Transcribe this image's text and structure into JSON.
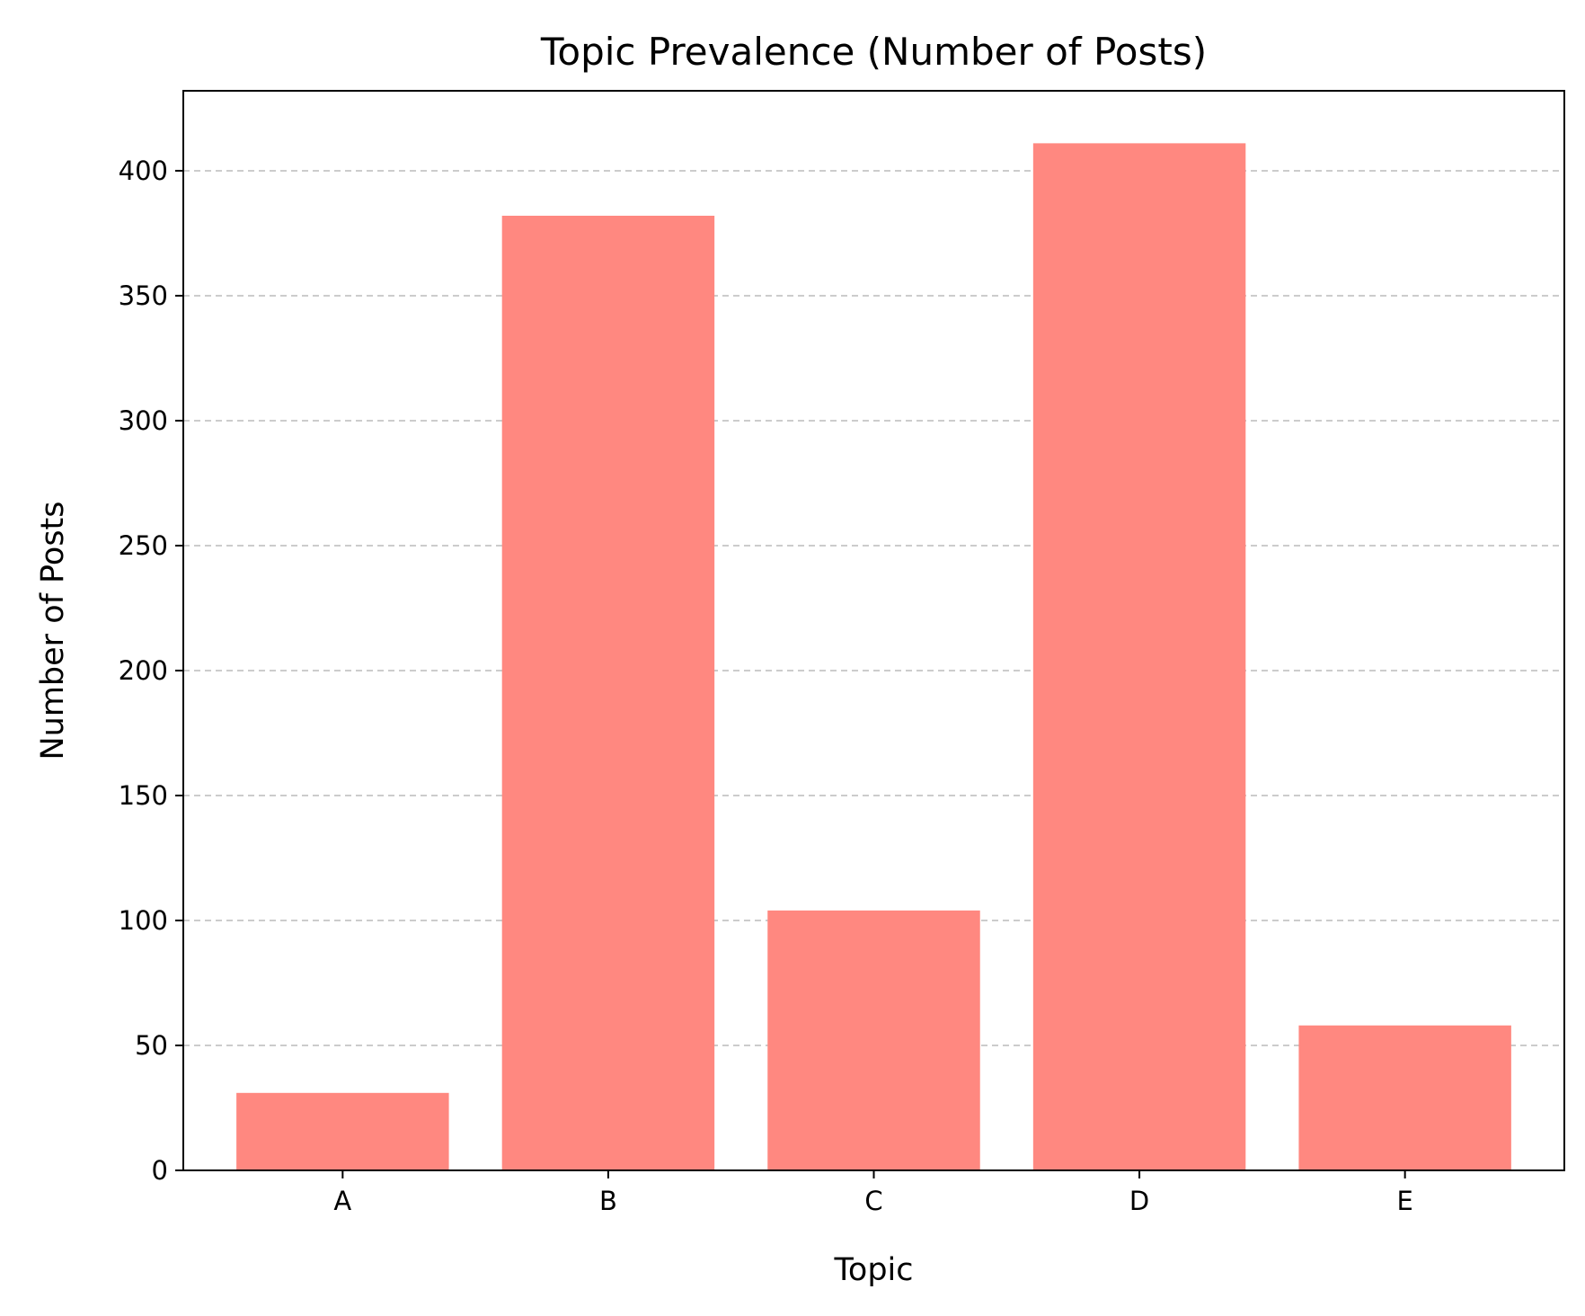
{
  "chart_data": {
    "type": "bar",
    "title": "Topic Prevalence (Number of Posts)",
    "xlabel": "Topic",
    "ylabel": "Number of Posts",
    "categories": [
      "A",
      "B",
      "C",
      "D",
      "E"
    ],
    "values": [
      31,
      382,
      104,
      411,
      58
    ],
    "ylim": [
      0,
      432
    ],
    "yticks": [
      0,
      50,
      100,
      150,
      200,
      250,
      300,
      350,
      400
    ],
    "grid": "y-dashed",
    "legend": "none",
    "bar_color": "#ff8880",
    "grid_color": "#cccccc"
  }
}
